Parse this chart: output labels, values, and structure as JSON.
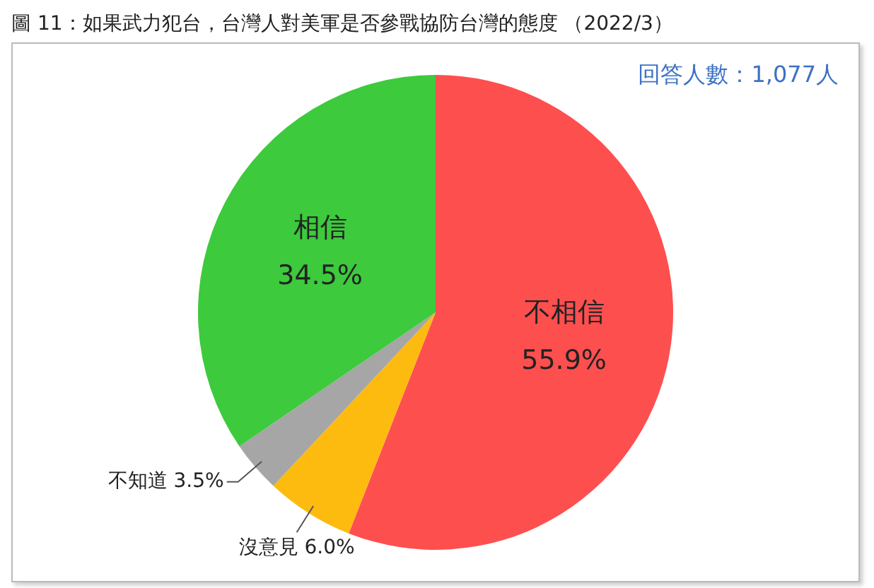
{
  "chart_data": {
    "type": "pie",
    "title": "圖 11：如果武力犯台，台灣人對美軍是否參戰協防台灣的態度 （2022/3）",
    "annotations": [
      "回答人數：1,077人"
    ],
    "categories": [
      "不相信",
      "沒意見",
      "不知道",
      "相信"
    ],
    "values": [
      55.9,
      6.0,
      3.5,
      34.5
    ],
    "colors": [
      "#fe4f4f",
      "#fdbb10",
      "#a6a6a6",
      "#3dca3d"
    ],
    "value_labels": [
      "55.9%",
      "6.0%",
      "3.5%",
      "34.5%"
    ],
    "legend": false
  }
}
